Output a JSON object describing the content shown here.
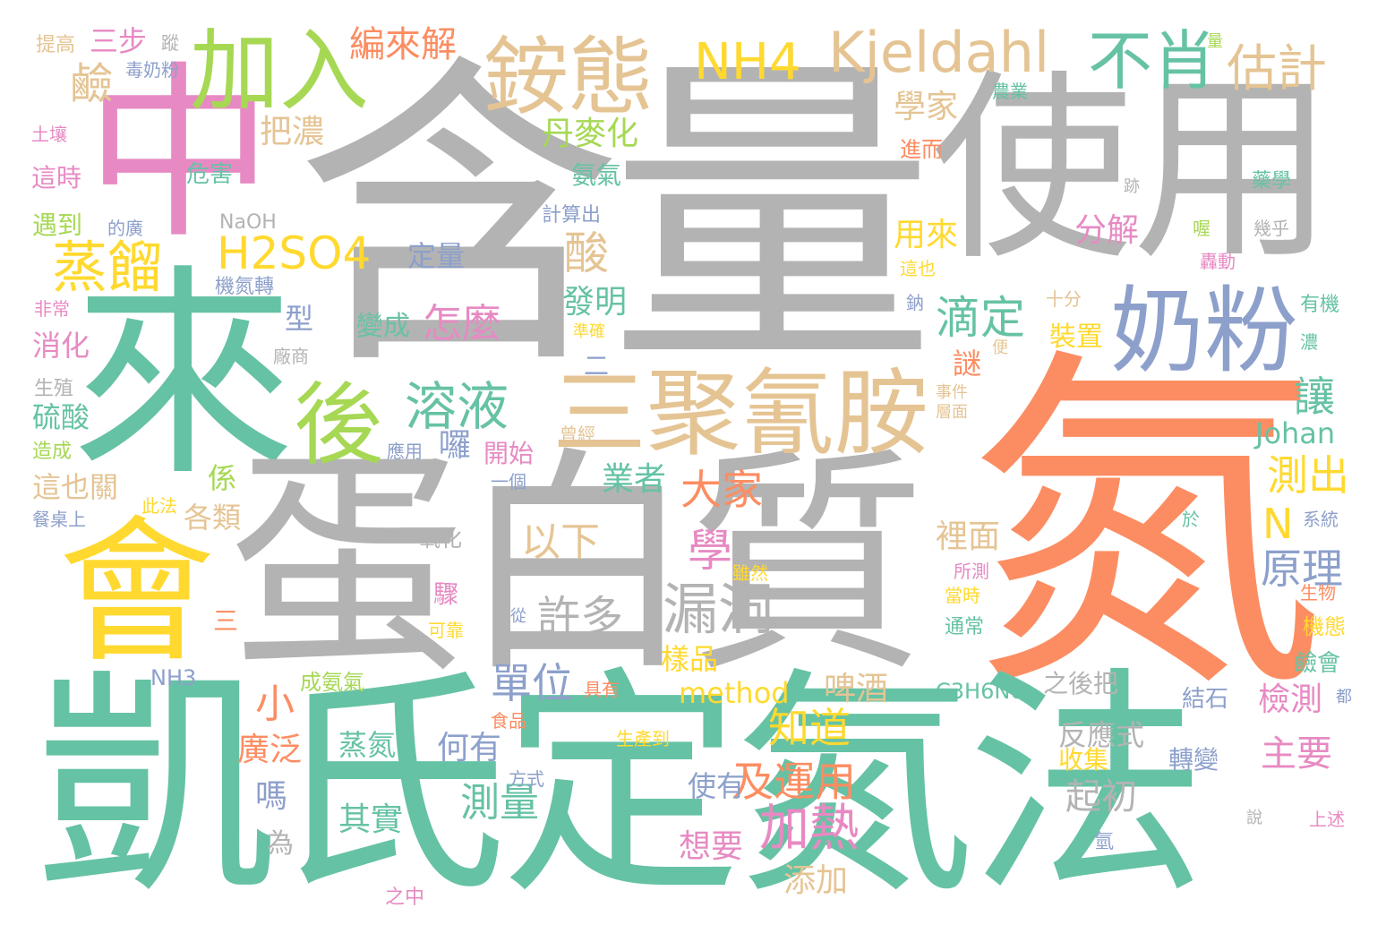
{
  "palette": {
    "green": "#66c2a5",
    "orange": "#fc8d62",
    "blue": "#8da0cb",
    "pink": "#e78ac3",
    "lime": "#a6d854",
    "yellow": "#ffd92f",
    "tan": "#e5c494",
    "gray": "#b3b3b3"
  },
  "words": [
    {
      "text": "含量",
      "color": "#b3b3b3"
    },
    {
      "text": "氮",
      "color": "#fc8d62"
    },
    {
      "text": "凱氏定氮法",
      "color": "#66c2a5"
    },
    {
      "text": "來",
      "color": "#66c2a5"
    },
    {
      "text": "中",
      "color": "#e78ac3"
    },
    {
      "text": "使用",
      "color": "#b3b3b3"
    },
    {
      "text": "蛋白質",
      "color": "#b3b3b3"
    },
    {
      "text": "會",
      "color": "#ffd92f"
    },
    {
      "text": "三聚氰胺",
      "color": "#e5c494"
    },
    {
      "text": "奶粉",
      "color": "#8da0cb"
    },
    {
      "text": "加入",
      "color": "#a6d854"
    },
    {
      "text": "銨態",
      "color": "#e5c494"
    },
    {
      "text": "不肖",
      "color": "#66c2a5"
    },
    {
      "text": "Kjeldahl",
      "color": "#e5c494"
    },
    {
      "text": "NH4",
      "color": "#ffd92f"
    },
    {
      "text": "估計",
      "color": "#e5c494"
    },
    {
      "text": "後",
      "color": "#a6d854"
    },
    {
      "text": "H2SO4",
      "color": "#ffd92f"
    },
    {
      "text": "蒸餾",
      "color": "#ffd92f"
    },
    {
      "text": "溶液",
      "color": "#66c2a5"
    },
    {
      "text": "漏洞",
      "color": "#b3b3b3"
    },
    {
      "text": "滴定",
      "color": "#66c2a5"
    },
    {
      "text": "三步",
      "color": "#e78ac3"
    },
    {
      "text": "鹼",
      "color": "#e5c494"
    },
    {
      "text": "編來解",
      "color": "#fc8d62"
    },
    {
      "text": "酸",
      "color": "#e5c494"
    },
    {
      "text": "怎麼",
      "color": "#e78ac3"
    },
    {
      "text": "學",
      "color": "#e78ac3"
    },
    {
      "text": "以下",
      "color": "#e5c494"
    },
    {
      "text": "許多",
      "color": "#b3b3b3"
    },
    {
      "text": "大家",
      "color": "#fc8d62"
    },
    {
      "text": "業者",
      "color": "#66c2a5"
    },
    {
      "text": "單位",
      "color": "#8da0cb"
    },
    {
      "text": "測出",
      "color": "#ffd92f"
    },
    {
      "text": "原理",
      "color": "#8da0cb"
    },
    {
      "text": "N",
      "color": "#ffd92f"
    },
    {
      "text": "Johan",
      "color": "#66c2a5"
    },
    {
      "text": "讓",
      "color": "#66c2a5"
    },
    {
      "text": "知道",
      "color": "#ffd92f"
    },
    {
      "text": "加熱",
      "color": "#e78ac3"
    },
    {
      "text": "及運用",
      "color": "#fc8d62"
    },
    {
      "text": "method",
      "color": "#ffd92f"
    },
    {
      "text": "測量",
      "color": "#66c2a5"
    },
    {
      "text": "小",
      "color": "#fc8d62"
    },
    {
      "text": "蒸氮",
      "color": "#66c2a5"
    },
    {
      "text": "其實",
      "color": "#66c2a5"
    },
    {
      "text": "想要",
      "color": "#e78ac3"
    },
    {
      "text": "添加",
      "color": "#e5c494"
    },
    {
      "text": "何有",
      "color": "#8da0cb"
    },
    {
      "text": "使有",
      "color": "#8da0cb"
    },
    {
      "text": "起初",
      "color": "#b3b3b3"
    },
    {
      "text": "反應式",
      "color": "#b3b3b3"
    },
    {
      "text": "主要",
      "color": "#e78ac3"
    },
    {
      "text": "檢測",
      "color": "#e78ac3"
    },
    {
      "text": "廣泛",
      "color": "#fc8d62"
    },
    {
      "text": "嗎",
      "color": "#8da0cb"
    },
    {
      "text": "為",
      "color": "#b3b3b3"
    },
    {
      "text": "學家",
      "color": "#e5c494"
    },
    {
      "text": "把濃",
      "color": "#e5c494"
    },
    {
      "text": "丹麥化",
      "color": "#a6d854"
    },
    {
      "text": "氨氣",
      "color": "#66c2a5"
    },
    {
      "text": "用來",
      "color": "#ffd92f"
    },
    {
      "text": "分解",
      "color": "#e78ac3"
    },
    {
      "text": "發明",
      "color": "#66c2a5"
    },
    {
      "text": "定量",
      "color": "#8da0cb"
    },
    {
      "text": "變成",
      "color": "#66c2a5"
    },
    {
      "text": "各類",
      "color": "#e5c494"
    },
    {
      "text": "係",
      "color": "#a6d854"
    },
    {
      "text": "這也關",
      "color": "#e5c494"
    },
    {
      "text": "硫酸",
      "color": "#66c2a5"
    },
    {
      "text": "消化",
      "color": "#e78ac3"
    },
    {
      "text": "型",
      "color": "#8da0cb"
    },
    {
      "text": "囉",
      "color": "#8da0cb"
    },
    {
      "text": "開始",
      "color": "#e78ac3"
    },
    {
      "text": "謎",
      "color": "#fc8d62"
    },
    {
      "text": "裝置",
      "color": "#ffd92f"
    },
    {
      "text": "樣品",
      "color": "#ffd92f"
    },
    {
      "text": "啤酒",
      "color": "#e5c494"
    },
    {
      "text": "裡面",
      "color": "#e5c494"
    },
    {
      "text": "收集",
      "color": "#ffd92f"
    },
    {
      "text": "轉變",
      "color": "#8da0cb"
    },
    {
      "text": "C3H6N6",
      "color": "#66c2a5"
    },
    {
      "text": "之後把",
      "color": "#b3b3b3"
    },
    {
      "text": "結石",
      "color": "#8da0cb"
    },
    {
      "text": "鹼會",
      "color": "#66c2a5"
    },
    {
      "text": "機態",
      "color": "#ffd92f"
    },
    {
      "text": "生物",
      "color": "#fc8d62"
    },
    {
      "text": "系統",
      "color": "#8da0cb"
    },
    {
      "text": "提高",
      "color": "#e5c494"
    },
    {
      "text": "毒奶粉",
      "color": "#8da0cb"
    },
    {
      "text": "蹤",
      "color": "#b3b3b3"
    },
    {
      "text": "土壤",
      "color": "#e78ac3"
    },
    {
      "text": "這時",
      "color": "#e78ac3"
    },
    {
      "text": "危害",
      "color": "#66c2a5"
    },
    {
      "text": "遇到",
      "color": "#a6d854"
    },
    {
      "text": "的廣",
      "color": "#8da0cb"
    },
    {
      "text": "NaOH",
      "color": "#b3b3b3"
    },
    {
      "text": "機氮轉",
      "color": "#8da0cb"
    },
    {
      "text": "非常",
      "color": "#e78ac3"
    },
    {
      "text": "生殖",
      "color": "#b3b3b3"
    },
    {
      "text": "造成",
      "color": "#a6d854"
    },
    {
      "text": "餐桌上",
      "color": "#8da0cb"
    },
    {
      "text": "此法",
      "color": "#ffd92f"
    },
    {
      "text": "廠商",
      "color": "#b3b3b3"
    },
    {
      "text": "氧化",
      "color": "#b3b3b3"
    },
    {
      "text": "驟",
      "color": "#e78ac3"
    },
    {
      "text": "從",
      "color": "#8da0cb"
    },
    {
      "text": "可靠",
      "color": "#ffd92f"
    },
    {
      "text": "三",
      "color": "#fc8d62"
    },
    {
      "text": "NH3",
      "color": "#8da0cb"
    },
    {
      "text": "成氨氣",
      "color": "#a6d854"
    },
    {
      "text": "具有",
      "color": "#fc8d62"
    },
    {
      "text": "食品",
      "color": "#fc8d62"
    },
    {
      "text": "生產到",
      "color": "#ffd92f"
    },
    {
      "text": "方式",
      "color": "#8da0cb"
    },
    {
      "text": "之中",
      "color": "#e78ac3"
    },
    {
      "text": "曾經",
      "color": "#e5c494"
    },
    {
      "text": "應用",
      "color": "#8da0cb"
    },
    {
      "text": "一個",
      "color": "#8da0cb"
    },
    {
      "text": "二",
      "color": "#8da0cb"
    },
    {
      "text": "準確",
      "color": "#ffd92f"
    },
    {
      "text": "雖然",
      "color": "#ffd92f"
    },
    {
      "text": "計算出",
      "color": "#8da0cb"
    },
    {
      "text": "進而",
      "color": "#fc8d62"
    },
    {
      "text": "農業",
      "color": "#66c2a5"
    },
    {
      "text": "量",
      "color": "#a6d854"
    },
    {
      "text": "跡",
      "color": "#b3b3b3"
    },
    {
      "text": "藥學",
      "color": "#66c2a5"
    },
    {
      "text": "喔",
      "color": "#a6d854"
    },
    {
      "text": "幾乎",
      "color": "#b3b3b3"
    },
    {
      "text": "這也",
      "color": "#ffd92f"
    },
    {
      "text": "轟動",
      "color": "#e78ac3"
    },
    {
      "text": "鈉",
      "color": "#8da0cb"
    },
    {
      "text": "十分",
      "color": "#e5c494"
    },
    {
      "text": "有機",
      "color": "#66c2a5"
    },
    {
      "text": "濃",
      "color": "#66c2a5"
    },
    {
      "text": "便",
      "color": "#e5c494"
    },
    {
      "text": "事件",
      "color": "#e5c494"
    },
    {
      "text": "層面",
      "color": "#e5c494"
    },
    {
      "text": "所測",
      "color": "#e78ac3"
    },
    {
      "text": "當時",
      "color": "#ffd92f"
    },
    {
      "text": "通常",
      "color": "#66c2a5"
    },
    {
      "text": "於",
      "color": "#66c2a5"
    },
    {
      "text": "都",
      "color": "#8da0cb"
    },
    {
      "text": "說",
      "color": "#b3b3b3"
    },
    {
      "text": "上述",
      "color": "#e78ac3"
    },
    {
      "text": "氫",
      "color": "#8da0cb"
    }
  ]
}
